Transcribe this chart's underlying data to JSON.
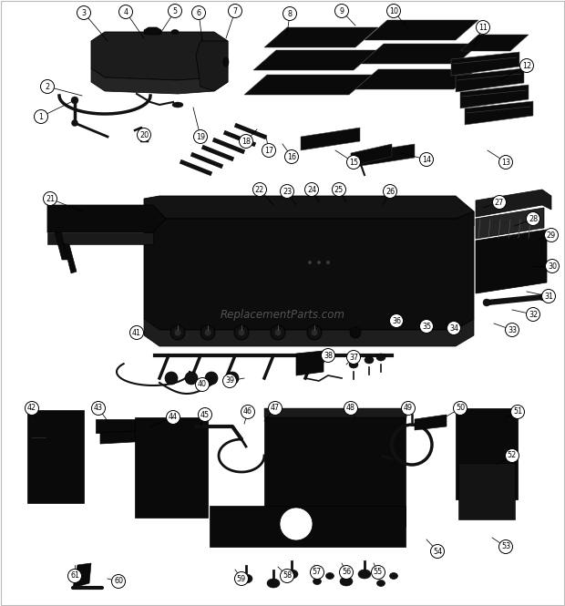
{
  "bg_color": "#ffffff",
  "part_color": "#111111",
  "dark_color": "#1a1a1a",
  "mid_color": "#2a2a2a",
  "label_r": 7.5,
  "label_fontsize": 5.8,
  "watermark": "ReplacementParts.com",
  "watermark_color": "#aaaaaa",
  "watermark_alpha": 0.45,
  "watermark_fontsize": 8.5,
  "border_color": "#bbbbbb"
}
